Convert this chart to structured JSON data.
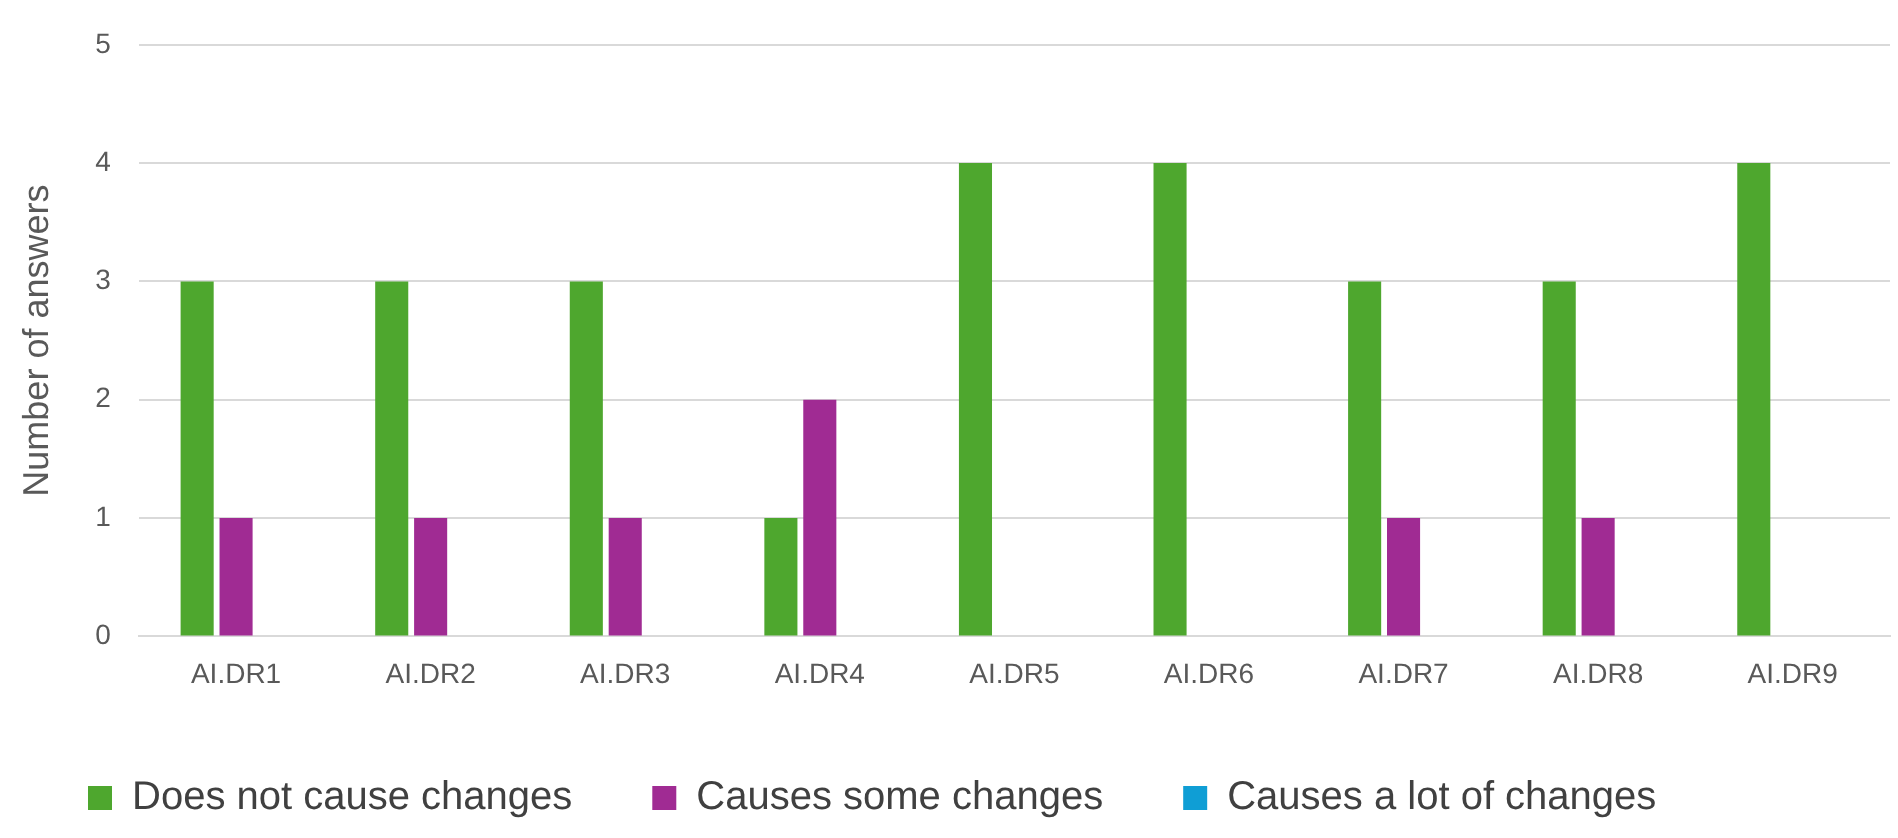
{
  "chart_data": {
    "type": "bar",
    "ylabel": "Number of answers",
    "categories": [
      "AI.DR1",
      "AI.DR2",
      "AI.DR3",
      "AI.DR4",
      "AI.DR5",
      "AI.DR6",
      "AI.DR7",
      "AI.DR8",
      "AI.DR9"
    ],
    "series": [
      {
        "name": "Does not cause changes",
        "color": "#4ea72e",
        "values": [
          3,
          3,
          3,
          1,
          4,
          4,
          3,
          3,
          4
        ]
      },
      {
        "name": "Causes some changes",
        "color": "#a02b93",
        "values": [
          1,
          1,
          1,
          2,
          0,
          0,
          1,
          1,
          0
        ]
      },
      {
        "name": "Causes a lot of changes",
        "color": "#0f9ed5",
        "values": [
          0,
          0,
          0,
          0,
          0,
          0,
          0,
          0,
          0
        ]
      }
    ],
    "ylim": [
      0,
      5
    ],
    "yticks": [
      0,
      1,
      2,
      3,
      4,
      5
    ],
    "grid": "y",
    "legend": "bottom"
  }
}
